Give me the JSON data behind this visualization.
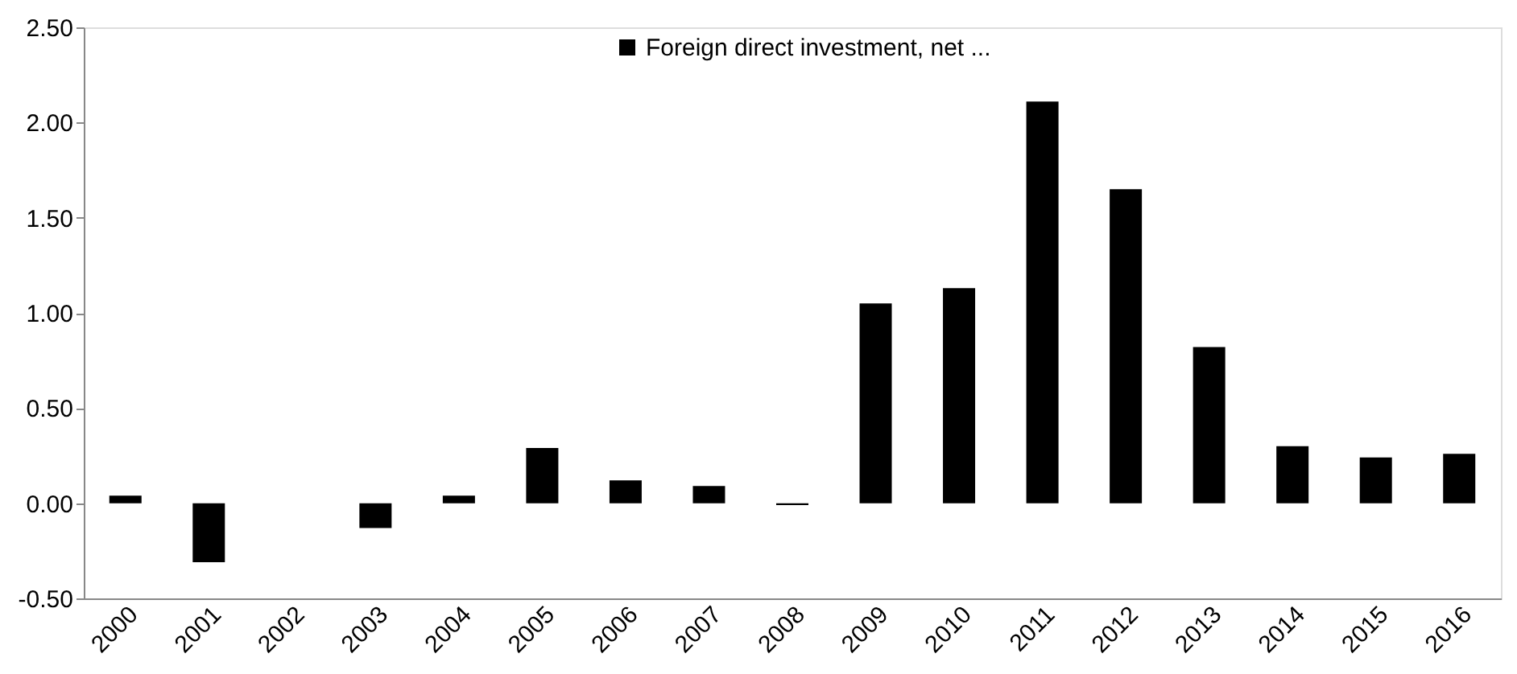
{
  "chart_data": {
    "type": "bar",
    "categories": [
      "2000",
      "2001",
      "2002",
      "2003",
      "2004",
      "2005",
      "2006",
      "2007",
      "2008",
      "2009",
      "2010",
      "2011",
      "2012",
      "2013",
      "2014",
      "2015",
      "2016"
    ],
    "series": [
      {
        "name": "Foreign direct investment, net ...",
        "color": "#000000",
        "values": [
          0.04,
          -0.31,
          0.0,
          -0.13,
          0.04,
          0.29,
          0.12,
          0.09,
          -0.01,
          1.05,
          1.13,
          2.11,
          1.65,
          0.82,
          0.3,
          0.24,
          0.26
        ]
      }
    ],
    "ylim": [
      -0.5,
      2.5
    ],
    "yticks": [
      {
        "value": -0.5,
        "label": "-0.50"
      },
      {
        "value": 0,
        "label": "0.00"
      },
      {
        "value": 0.5,
        "label": "0.50"
      },
      {
        "value": 1,
        "label": "1.00"
      },
      {
        "value": 1.5,
        "label": "1.50"
      },
      {
        "value": 2,
        "label": "2.00"
      },
      {
        "value": 2.5,
        "label": "2.50"
      }
    ],
    "grid": false,
    "legend": "top"
  }
}
